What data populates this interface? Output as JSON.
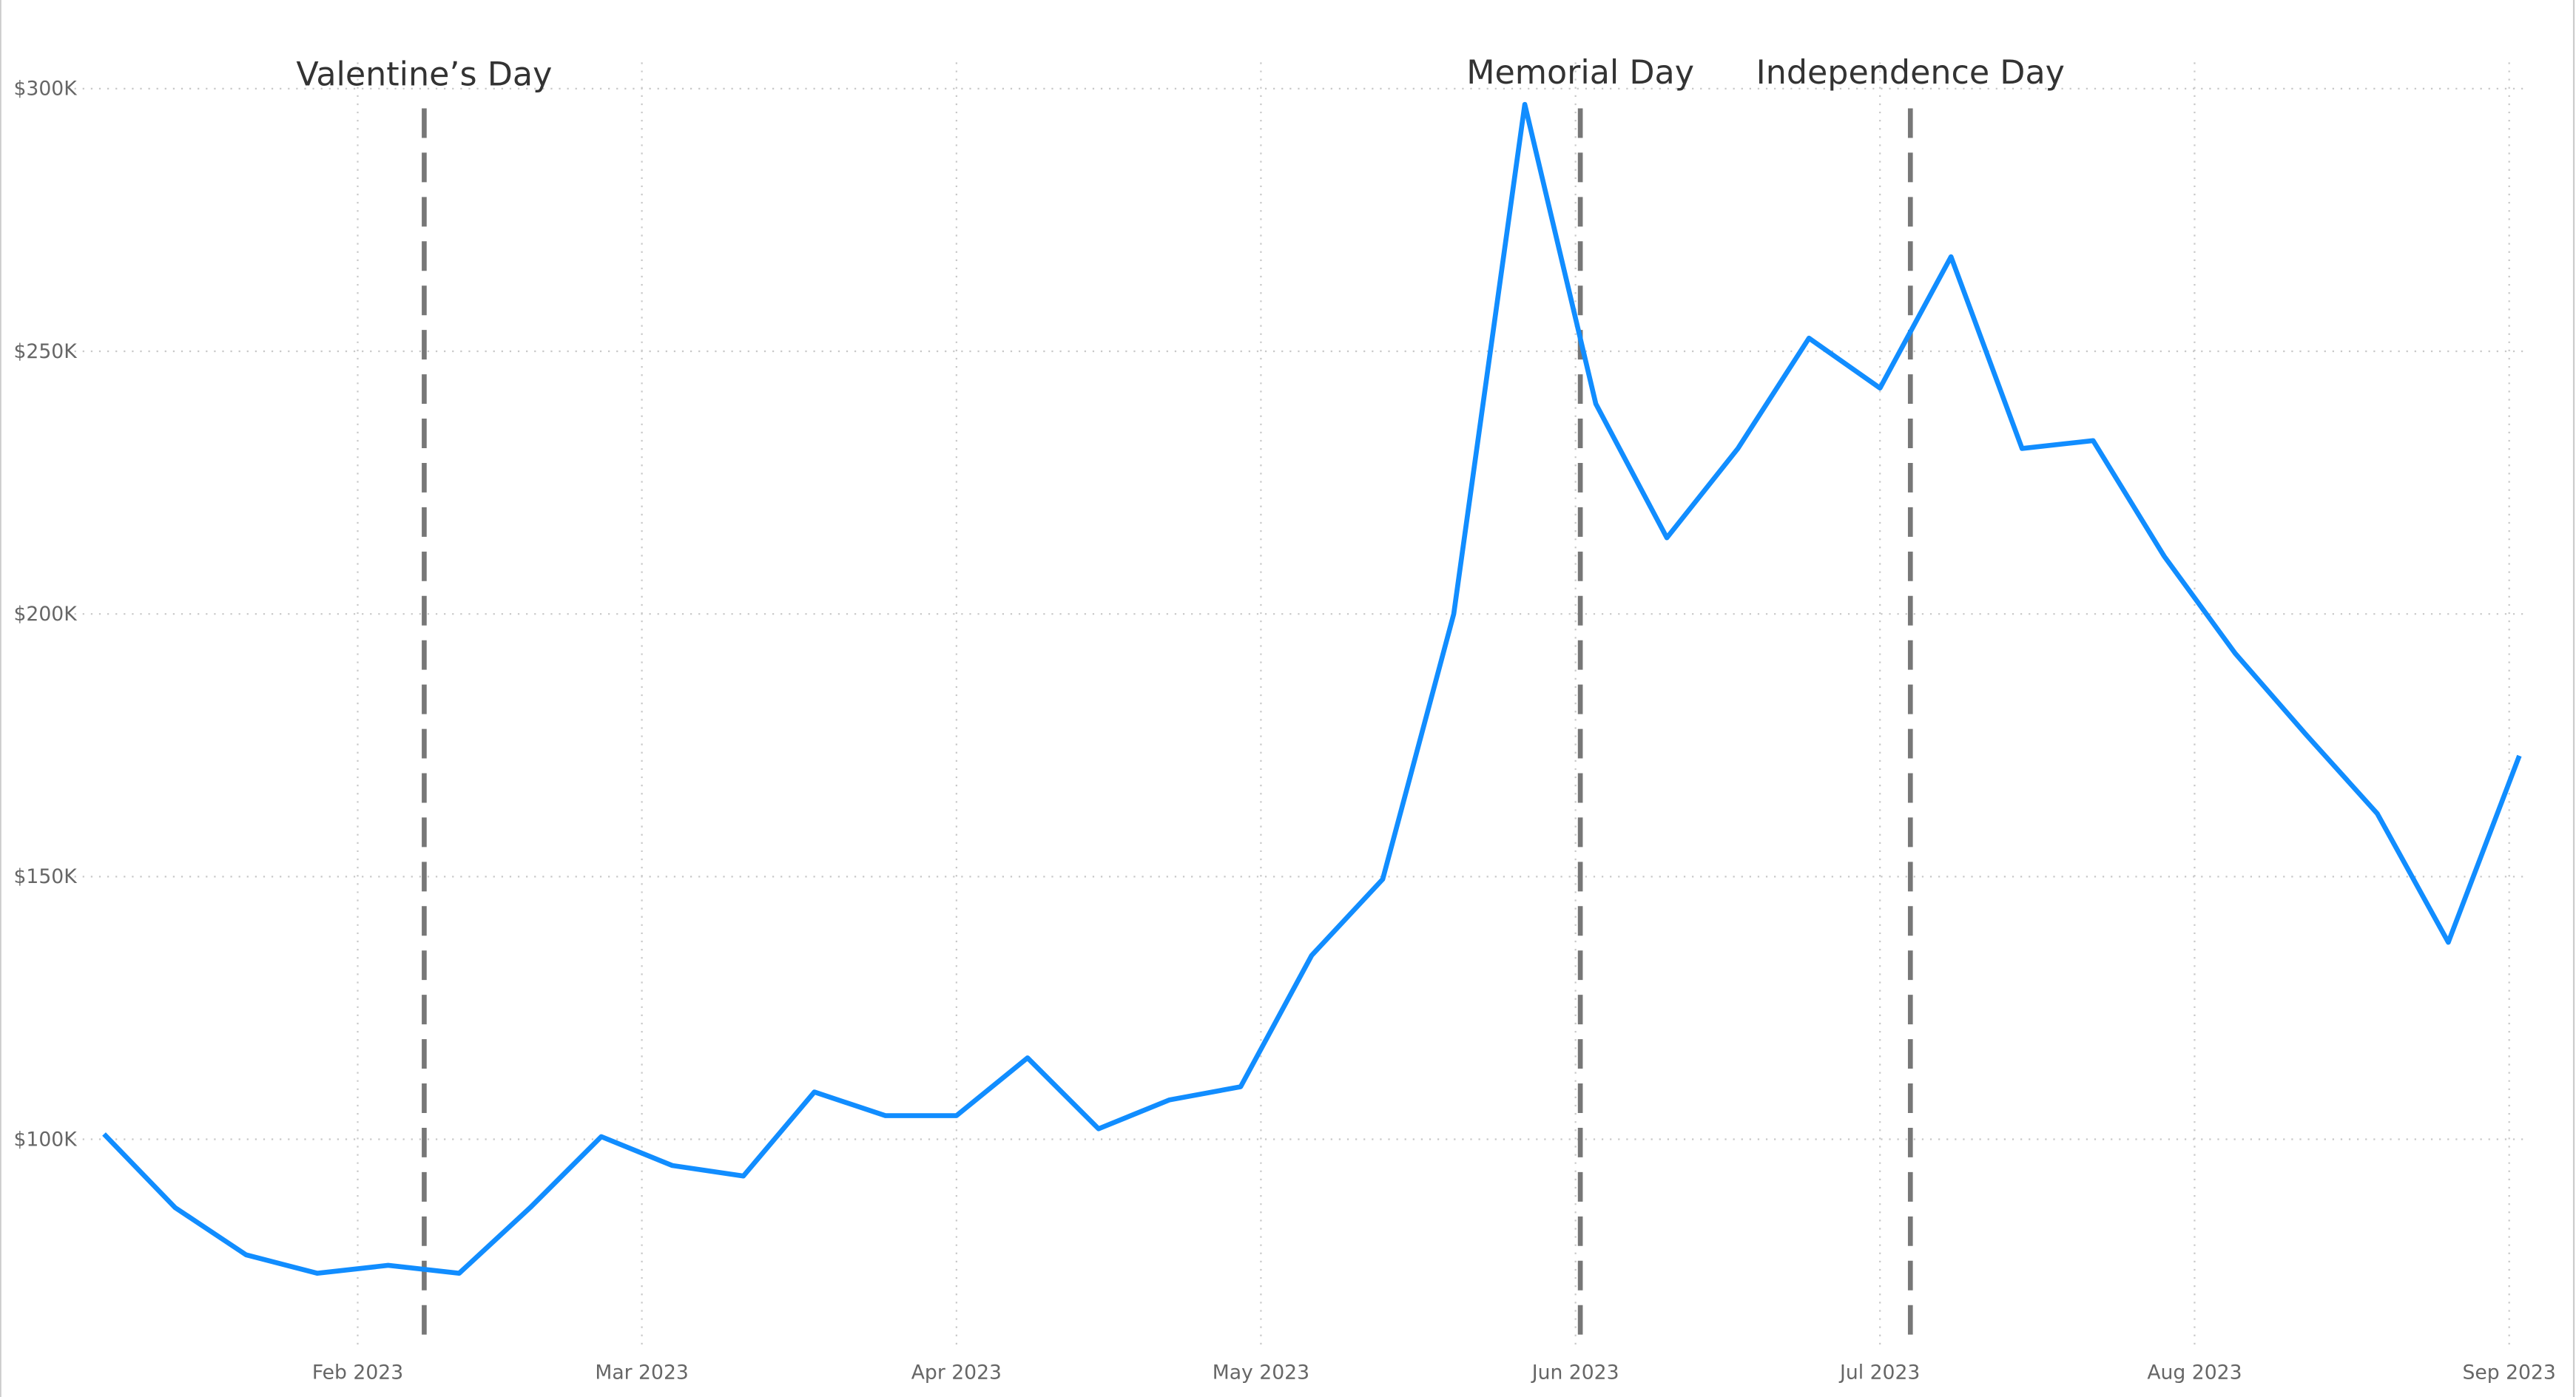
{
  "chart_data": {
    "type": "line",
    "x": [
      "2023-01-07",
      "2023-01-14",
      "2023-01-21",
      "2023-01-28",
      "2023-02-04",
      "2023-02-11",
      "2023-02-18",
      "2023-02-25",
      "2023-03-04",
      "2023-03-11",
      "2023-03-18",
      "2023-03-25",
      "2023-04-01",
      "2023-04-08",
      "2023-04-15",
      "2023-04-22",
      "2023-04-29",
      "2023-05-06",
      "2023-05-13",
      "2023-05-20",
      "2023-05-27",
      "2023-06-03",
      "2023-06-10",
      "2023-06-17",
      "2023-06-24",
      "2023-07-01",
      "2023-07-08",
      "2023-07-15",
      "2023-07-22",
      "2023-07-29",
      "2023-08-05",
      "2023-08-12",
      "2023-08-19",
      "2023-08-26",
      "2023-09-02"
    ],
    "values": [
      101000,
      87000,
      78000,
      74500,
      76000,
      74500,
      87000,
      100500,
      95000,
      93000,
      109000,
      104500,
      104500,
      115500,
      102000,
      107500,
      110000,
      135000,
      149500,
      200000,
      297000,
      240000,
      214500,
      231500,
      252500,
      243000,
      268000,
      231500,
      233000,
      211000,
      192500,
      177000,
      162000,
      137500,
      173000
    ],
    "color": "#118dff",
    "xlim": [
      "2023-01-07",
      "2023-09-03"
    ],
    "xticks": [
      {
        "value": "2023-02-01",
        "label": "Feb 2023"
      },
      {
        "value": "2023-03-01",
        "label": "Mar 2023"
      },
      {
        "value": "2023-04-01",
        "label": "Apr 2023"
      },
      {
        "value": "2023-05-01",
        "label": "May 2023"
      },
      {
        "value": "2023-06-01",
        "label": "Jun 2023"
      },
      {
        "value": "2023-07-01",
        "label": "Jul 2023"
      },
      {
        "value": "2023-08-01",
        "label": "Aug 2023"
      },
      {
        "value": "2023-09-01",
        "label": "Sep 2023"
      }
    ],
    "ylim": [
      60000,
      305000
    ],
    "yticks": [
      {
        "value": 100000,
        "label": "$100K"
      },
      {
        "value": 150000,
        "label": "$150K"
      },
      {
        "value": 200000,
        "label": "$200K"
      },
      {
        "value": 250000,
        "label": "$250K"
      },
      {
        "value": 300000,
        "label": "$300K"
      }
    ],
    "grid": true,
    "annotations": [
      "Valentine’s Day",
      "Memorial Day",
      "Independence Day"
    ]
  }
}
